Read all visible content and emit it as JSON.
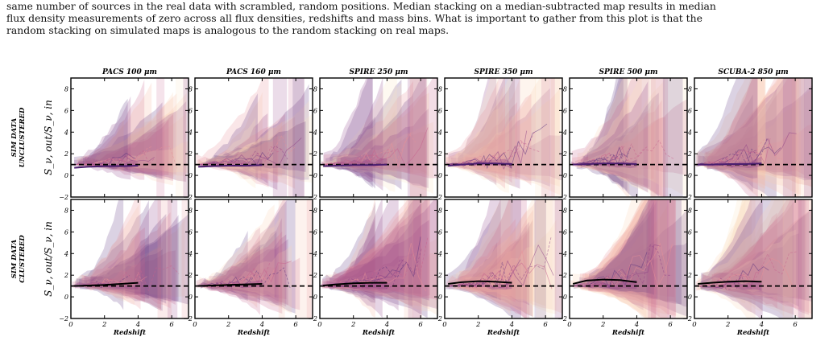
{
  "caption": {
    "lines": [
      "same number of sources in the real data with scrambled, random positions. Median stacking on a median-subtracted map results in median",
      "flux density measurements of zero across all flux densities, redshifts and mass bins. What is important to gather from this plot is that the",
      "random stacking on simulated maps is analogous to the random stacking on real maps."
    ]
  },
  "colors": {
    "axis": "#000000",
    "fill_palette": [
      "#fbe3c0",
      "#f9d2b0",
      "#f5b6a0",
      "#e78f98",
      "#c7638e",
      "#8e3f87",
      "#5b3380"
    ],
    "reference_line": "#000000"
  },
  "chart_data": {
    "type": "area",
    "panel_titles": [
      "PACS 100 μm",
      "PACS 160 μm",
      "SPIRE 250 μm",
      "SPIRE 350 μm",
      "SPIRE 500 μm",
      "SCUBA-2 850 μm"
    ],
    "row_labels": [
      [
        "SIM DATA",
        "UNCLUSTERED"
      ],
      [
        "SIM DATA",
        "CLUSTERED"
      ]
    ],
    "ylabel": "S_ν, out/S_ν, in",
    "xlabel": "Redshift",
    "xlim": [
      0,
      7
    ],
    "ylim": [
      -2,
      9
    ],
    "xticks": [
      0,
      2,
      4,
      6
    ],
    "yticks": [
      -2,
      0,
      2,
      4,
      6,
      8
    ],
    "reference_line_y": 1,
    "grid": false,
    "rows": [
      {
        "name": "UNCLUSTERED",
        "panels": [
          {
            "band": "PACS 100 μm",
            "median_curve": {
              "x": [
                0.2,
                1,
                2,
                3,
                4
              ],
              "y": [
                0.7,
                0.8,
                0.85,
                0.85,
                0.9
              ]
            }
          },
          {
            "band": "PACS 160 μm",
            "median_curve": {
              "x": [
                0.2,
                1,
                2,
                3,
                4
              ],
              "y": [
                0.8,
                0.85,
                0.9,
                0.9,
                0.95
              ]
            }
          },
          {
            "band": "SPIRE 250 μm",
            "median_curve": {
              "x": [
                0.2,
                1,
                2,
                3,
                4
              ],
              "y": [
                0.85,
                0.9,
                0.95,
                0.95,
                1.0
              ]
            }
          },
          {
            "band": "SPIRE 350 μm",
            "median_curve": {
              "x": [
                0.2,
                1,
                2,
                3,
                4
              ],
              "y": [
                0.9,
                1.0,
                1.1,
                1.1,
                1.05
              ]
            }
          },
          {
            "band": "SPIRE 500 μm",
            "median_curve": {
              "x": [
                0.2,
                1,
                2,
                3,
                4
              ],
              "y": [
                1.0,
                1.05,
                1.1,
                1.1,
                1.05
              ]
            }
          },
          {
            "band": "SCUBA-2 850 μm",
            "median_curve": {
              "x": [
                0.2,
                1,
                2,
                3,
                4
              ],
              "y": [
                1.0,
                1.0,
                1.05,
                1.05,
                1.1
              ]
            }
          }
        ]
      },
      {
        "name": "CLUSTERED",
        "panels": [
          {
            "band": "PACS 100 μm",
            "median_curve": {
              "x": [
                0.2,
                1,
                2,
                3,
                4
              ],
              "y": [
                1.0,
                1.05,
                1.1,
                1.2,
                1.3
              ]
            }
          },
          {
            "band": "PACS 160 μm",
            "median_curve": {
              "x": [
                0.2,
                1,
                2,
                3,
                4
              ],
              "y": [
                1.0,
                1.05,
                1.1,
                1.15,
                1.2
              ]
            }
          },
          {
            "band": "SPIRE 250 μm",
            "median_curve": {
              "x": [
                0.2,
                1,
                2,
                3,
                4
              ],
              "y": [
                1.05,
                1.15,
                1.25,
                1.3,
                1.3
              ]
            }
          },
          {
            "band": "SPIRE 350 μm",
            "median_curve": {
              "x": [
                0.2,
                1,
                2,
                3,
                4
              ],
              "y": [
                1.2,
                1.35,
                1.45,
                1.4,
                1.3
              ]
            }
          },
          {
            "band": "SPIRE 500 μm",
            "median_curve": {
              "x": [
                0.2,
                1,
                2,
                3,
                4
              ],
              "y": [
                1.2,
                1.5,
                1.6,
                1.55,
                1.35
              ]
            }
          },
          {
            "band": "SCUBA-2 850 μm",
            "median_curve": {
              "x": [
                0.2,
                1,
                2,
                3,
                4
              ],
              "y": [
                1.2,
                1.3,
                1.4,
                1.45,
                1.4
              ]
            }
          }
        ]
      }
    ]
  }
}
